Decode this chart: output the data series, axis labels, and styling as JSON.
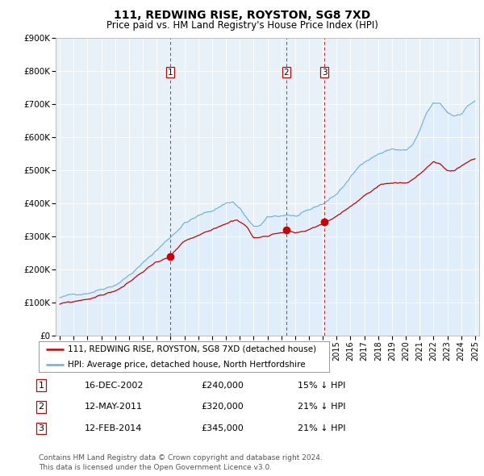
{
  "title": "111, REDWING RISE, ROYSTON, SG8 7XD",
  "subtitle": "Price paid vs. HM Land Registry's House Price Index (HPI)",
  "ylim": [
    0,
    900000
  ],
  "yticks": [
    0,
    100000,
    200000,
    300000,
    400000,
    500000,
    600000,
    700000,
    800000,
    900000
  ],
  "ytick_labels": [
    "£0",
    "£100K",
    "£200K",
    "£300K",
    "£400K",
    "£500K",
    "£600K",
    "£700K",
    "£800K",
    "£900K"
  ],
  "xlim_start": 1994.7,
  "xlim_end": 2025.3,
  "hpi_color": "#6baed6",
  "hpi_fill_color": "#ddeeff",
  "price_color": "#cc0000",
  "vline_color": "#cc0000",
  "sale_points": [
    {
      "year": 2002.96,
      "price": 240000,
      "label": "1"
    },
    {
      "year": 2011.36,
      "price": 320000,
      "label": "2"
    },
    {
      "year": 2014.12,
      "price": 345000,
      "label": "3"
    }
  ],
  "legend_label_red": "111, REDWING RISE, ROYSTON, SG8 7XD (detached house)",
  "legend_label_blue": "HPI: Average price, detached house, North Hertfordshire",
  "table_rows": [
    {
      "num": "1",
      "date": "16-DEC-2002",
      "price": "£240,000",
      "hpi": "15% ↓ HPI"
    },
    {
      "num": "2",
      "date": "12-MAY-2011",
      "price": "£320,000",
      "hpi": "21% ↓ HPI"
    },
    {
      "num": "3",
      "date": "12-FEB-2014",
      "price": "£345,000",
      "hpi": "21% ↓ HPI"
    }
  ],
  "footnote": "Contains HM Land Registry data © Crown copyright and database right 2024.\nThis data is licensed under the Open Government Licence v3.0.",
  "background_color": "#ffffff",
  "chart_bg_color": "#e8f0f8",
  "grid_color": "#ffffff"
}
